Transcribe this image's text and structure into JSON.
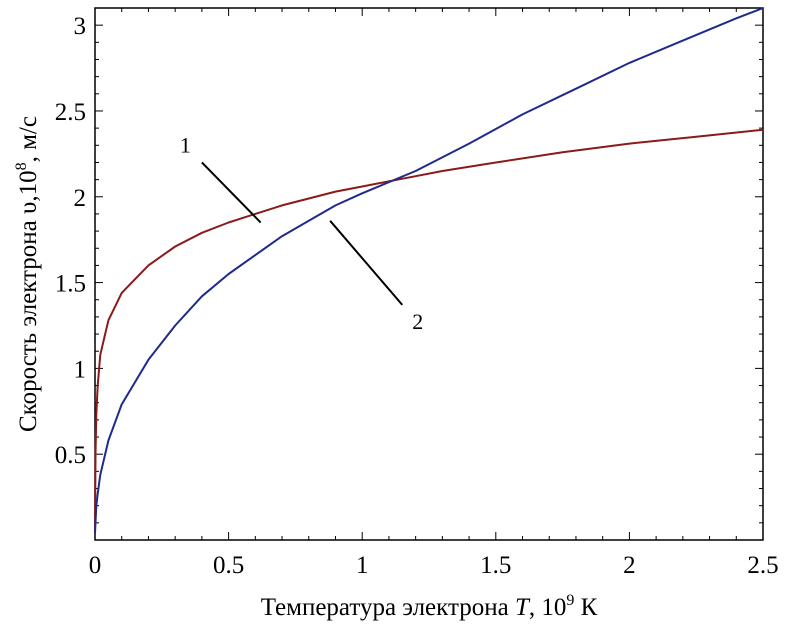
{
  "chart_data": {
    "type": "line",
    "xlabel": {
      "prefix": "Температура электрона ",
      "var": "T",
      "middle": ", 10",
      "exp": "9",
      "suffix": " К"
    },
    "ylabel": {
      "prefix": "Скорость  электрона υ,10",
      "exp": "8",
      "suffix": ", м/с"
    },
    "xlim": [
      0,
      2.5
    ],
    "ylim": [
      0,
      3.1
    ],
    "x_ticks": [
      {
        "value": 0,
        "label": "0"
      },
      {
        "value": 0.5,
        "label": "0.5"
      },
      {
        "value": 1,
        "label": "1"
      },
      {
        "value": 1.5,
        "label": "1.5"
      },
      {
        "value": 2,
        "label": "2"
      },
      {
        "value": 2.5,
        "label": "2.5"
      }
    ],
    "y_ticks": [
      {
        "value": 0.5,
        "label": "0.5"
      },
      {
        "value": 1,
        "label": "1"
      },
      {
        "value": 1.5,
        "label": "1.5"
      },
      {
        "value": 2,
        "label": "2"
      },
      {
        "value": 2.5,
        "label": "2.5"
      },
      {
        "value": 3,
        "label": "3"
      }
    ],
    "grid": false,
    "series": [
      {
        "name": "1",
        "color": "#8b1a1a",
        "x": [
          0,
          0.002,
          0.005,
          0.01,
          0.02,
          0.05,
          0.1,
          0.2,
          0.3,
          0.4,
          0.5,
          0.6,
          0.7,
          0.8,
          0.9,
          1.0,
          1.1,
          1.2,
          1.3,
          1.5,
          1.75,
          2.0,
          2.25,
          2.5
        ],
        "y": [
          0.05,
          0.5,
          0.73,
          0.9,
          1.08,
          1.28,
          1.44,
          1.6,
          1.71,
          1.79,
          1.85,
          1.9,
          1.95,
          1.99,
          2.03,
          2.06,
          2.09,
          2.12,
          2.15,
          2.2,
          2.26,
          2.31,
          2.35,
          2.39
        ]
      },
      {
        "name": "2",
        "color": "#1f2a8c",
        "x": [
          0,
          0.005,
          0.01,
          0.02,
          0.05,
          0.1,
          0.2,
          0.3,
          0.4,
          0.5,
          0.6,
          0.7,
          0.8,
          0.9,
          1.0,
          1.2,
          1.4,
          1.6,
          1.8,
          2.0,
          2.2,
          2.4,
          2.5
        ],
        "y": [
          0.04,
          0.2,
          0.27,
          0.38,
          0.58,
          0.79,
          1.05,
          1.25,
          1.42,
          1.55,
          1.66,
          1.77,
          1.86,
          1.95,
          2.02,
          2.15,
          2.31,
          2.48,
          2.63,
          2.78,
          2.91,
          3.04,
          3.1
        ]
      }
    ],
    "annotations": [
      {
        "label": "1",
        "series": 0,
        "target": [
          0.62,
          1.85
        ],
        "line_end": [
          0.4,
          2.2
        ]
      },
      {
        "label": "2",
        "series": 1,
        "target": [
          0.88,
          1.86
        ],
        "line_end": [
          1.15,
          1.37
        ]
      }
    ]
  }
}
